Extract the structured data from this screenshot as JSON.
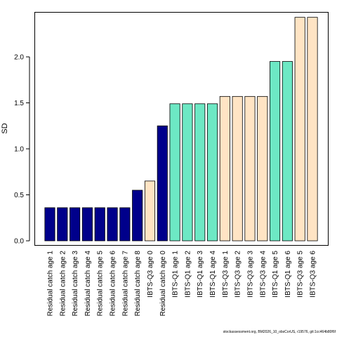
{
  "chart_data": {
    "type": "bar",
    "title": "",
    "xlabel": "",
    "ylabel": "SD",
    "ylim": [
      0,
      2.45
    ],
    "yticks": [
      "0.0",
      "0.5",
      "1.0",
      "1.5",
      "2.0"
    ],
    "ytick_values": [
      0,
      0.5,
      1.0,
      1.5,
      2.0
    ],
    "grid": false,
    "legend": "none",
    "categories": [
      "Residual catch age 1",
      "Residual catch age 2",
      "Residual catch age 3",
      "Residual catch age 4",
      "Residual catch age 5",
      "Residual catch age 6",
      "Residual catch age 7",
      "Residual catch age 8",
      "IBTS-Q3 age 0",
      "Residual catch age 0",
      "IBTS-Q1 age 1",
      "IBTS-Q1 age 2",
      "IBTS-Q1 age 3",
      "IBTS-Q1 age 4",
      "IBTS-Q3 age 1",
      "IBTS-Q3 age 2",
      "IBTS-Q3 age 3",
      "IBTS-Q3 age 4",
      "IBTS-Q1 age 5",
      "IBTS-Q1 age 6",
      "IBTS-Q3 age 5",
      "IBTS-Q3 age 6"
    ],
    "values": [
      0.36,
      0.36,
      0.36,
      0.36,
      0.36,
      0.36,
      0.36,
      0.55,
      0.65,
      1.25,
      1.49,
      1.49,
      1.49,
      1.49,
      1.57,
      1.57,
      1.57,
      1.57,
      1.95,
      1.95,
      2.43,
      2.43
    ],
    "colors": {
      "residual_catch": "#00008B",
      "ibts_q1": "#6DE8C4",
      "ibts_q3": "#FFE4C4"
    },
    "bar_groups": [
      "residual_catch",
      "residual_catch",
      "residual_catch",
      "residual_catch",
      "residual_catch",
      "residual_catch",
      "residual_catch",
      "residual_catch",
      "ibts_q3",
      "residual_catch",
      "ibts_q1",
      "ibts_q1",
      "ibts_q1",
      "ibts_q1",
      "ibts_q3",
      "ibts_q3",
      "ibts_q3",
      "ibts_q3",
      "ibts_q1",
      "ibts_q1",
      "ibts_q3",
      "ibts_q3"
    ]
  },
  "footer": {
    "text": "stockassessment.org, BM2026_10_obsCorUS, r19576, git:1cc464b80f6f"
  }
}
